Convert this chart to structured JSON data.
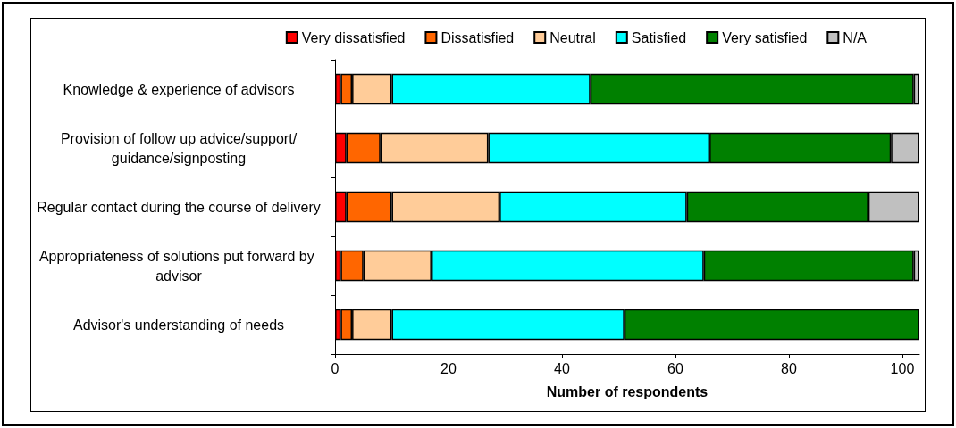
{
  "chart_data": {
    "type": "bar",
    "orientation": "horizontal",
    "stacked": true,
    "xlabel": "Number of respondents",
    "categories": [
      "Knowledge & experience of advisors",
      "Provision of follow up advice/support/guidance/signposting",
      "Regular contact during the course of delivery",
      "Appropriateness of solutions put forward by advisor",
      "Advisor's understanding of needs"
    ],
    "series": [
      {
        "name": "Very dissatisfied",
        "color": "#ff0000",
        "values": [
          1,
          2,
          2,
          1,
          1
        ]
      },
      {
        "name": "Dissatisfied",
        "color": "#ff6600",
        "values": [
          2,
          6,
          8,
          4,
          2
        ]
      },
      {
        "name": "Neutral",
        "color": "#ffcc99",
        "values": [
          7,
          19,
          19,
          12,
          7
        ]
      },
      {
        "name": "Satisfied",
        "color": "#00ffff",
        "values": [
          35,
          39,
          33,
          48,
          41
        ]
      },
      {
        "name": "Very satisfied",
        "color": "#008000",
        "values": [
          57,
          32,
          32,
          37,
          52
        ]
      },
      {
        "name": "N/A",
        "color": "#c0c0c0",
        "values": [
          1,
          5,
          9,
          1,
          0
        ]
      }
    ],
    "xlim": [
      0,
      103
    ],
    "xticks": [
      0,
      20,
      40,
      60,
      80,
      100
    ],
    "grid": false,
    "legend": "top"
  }
}
